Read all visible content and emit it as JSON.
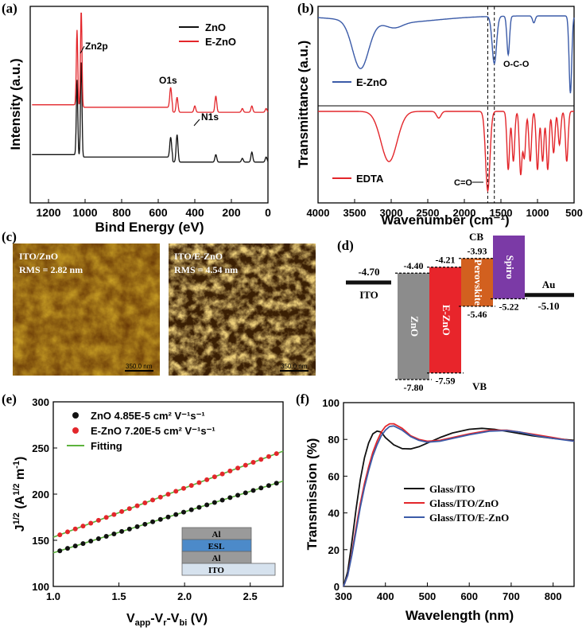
{
  "colors": {
    "black": "#111111",
    "red": "#e3262b",
    "blue": "#3b5ba8",
    "green": "#5db33d",
    "gray": "#8c8c8c",
    "ered": "#e8252b",
    "perov": "#d2601f",
    "spiro": "#7b3aa6"
  },
  "panels": {
    "a": {
      "label": "(a)",
      "chart_data": {
        "type": "line",
        "title": "",
        "xlabel": "Bind Energy (eV)",
        "ylabel": "Intensity (a.u.)",
        "xlim": [
          1300,
          0
        ],
        "xticks": [
          "1200",
          "1000",
          "800",
          "600",
          "400",
          "200",
          "0"
        ],
        "legend": [
          "ZnO",
          "E-ZnO"
        ],
        "annotations": [
          "Zn2p",
          "O1s",
          "N1s"
        ],
        "series": [
          {
            "name": "ZnO",
            "color": "black",
            "baseline": 0.22,
            "peaks": [
              [
                1044,
                0.62
              ],
              [
                1021,
                0.78
              ],
              [
                532,
                0.16
              ],
              [
                497,
                0.22
              ],
              [
                285,
                0.06
              ],
              [
                140,
                0.03
              ],
              [
                88,
                0.08
              ],
              [
                10,
                0.04
              ]
            ]
          },
          {
            "name": "E-ZnO",
            "color": "red",
            "baseline": 0.62,
            "peaks": [
              [
                1044,
                0.62
              ],
              [
                1021,
                0.78
              ],
              [
                532,
                0.16
              ],
              [
                497,
                0.12
              ],
              [
                400,
                0.05
              ],
              [
                285,
                0.13
              ],
              [
                140,
                0.03
              ],
              [
                88,
                0.05
              ],
              [
                10,
                0.03
              ]
            ]
          }
        ]
      }
    },
    "b": {
      "label": "(b)",
      "chart_data": {
        "type": "line",
        "title": "",
        "xlabel": "Wavenumber (cm⁻¹)",
        "ylabel": "Transmittance (a.u.)",
        "xlim": [
          4000,
          500
        ],
        "xticks": [
          "4000",
          "3500",
          "3000",
          "2500",
          "2000",
          "1500",
          "1000",
          "500"
        ],
        "dashed_lines_at": [
          1680,
          1590
        ],
        "annotations": [
          "O-C-O",
          "C=O"
        ],
        "series": [
          {
            "name": "E-ZnO",
            "color": "blue",
            "dips": [
              [
                3420,
                0.55
              ],
              [
                2960,
                0.06
              ],
              [
                1590,
                0.55
              ],
              [
                1400,
                0.45
              ],
              [
                1050,
                0.08
              ],
              [
                550,
                0.9
              ]
            ]
          },
          {
            "name": "EDTA",
            "color": "red",
            "dips": [
              [
                3030,
                0.6
              ],
              [
                2350,
                0.08
              ],
              [
                1680,
                0.95
              ],
              [
                1400,
                0.7
              ],
              [
                1330,
                0.6
              ],
              [
                1230,
                0.75
              ],
              [
                1180,
                0.55
              ],
              [
                1100,
                0.6
              ],
              [
                1000,
                0.7
              ],
              [
                930,
                0.6
              ],
              [
                860,
                0.7
              ],
              [
                780,
                0.5
              ],
              [
                700,
                0.4
              ],
              [
                600,
                0.6
              ]
            ]
          }
        ]
      }
    },
    "c": {
      "label": "(c)",
      "images": [
        {
          "title": "ITO/ZnO",
          "rms": "RMS = 2.82 nm",
          "scale": "350.0 nm"
        },
        {
          "title": "ITO/E-ZnO",
          "rms": "RMS = 4.54 nm",
          "scale": "350.0 nm"
        }
      ]
    },
    "d": {
      "label": "(d)",
      "chart_data": {
        "type": "energy-level-diagram",
        "cb_label": "CB",
        "vb_label": "VB",
        "materials": [
          {
            "name": "ITO",
            "wf": "-4.70",
            "wf_value": -4.7,
            "kind": "line"
          },
          {
            "name": "ZnO",
            "cb": "-4.40",
            "vb": "-7.80",
            "cb_value": -4.4,
            "vb_value": -7.8,
            "color": "gray"
          },
          {
            "name": "E-ZnO",
            "cb": "-4.21",
            "vb": "-7.59",
            "cb_value": -4.21,
            "vb_value": -7.59,
            "color": "ered"
          },
          {
            "name": "Perovskite",
            "cb": "-3.93",
            "vb": "-5.46",
            "cb_value": -3.93,
            "vb_value": -5.46,
            "color": "perov"
          },
          {
            "name": "Spiro",
            "cb": "",
            "vb": "-5.22",
            "cb_value": -3.2,
            "vb_value": -5.22,
            "color": "spiro"
          },
          {
            "name": "Au",
            "wf": "-5.10",
            "wf_value": -5.1,
            "kind": "line"
          }
        ]
      }
    },
    "e": {
      "label": "(e)",
      "chart_data": {
        "type": "scatter",
        "xlabel": "V_app-V_r-V_bi (V)",
        "ylabel": "J^1/2 (A^1/2 m^-1)",
        "xlim": [
          1.0,
          2.75
        ],
        "ylim": [
          100,
          300
        ],
        "xticks": [
          "1.0",
          "1.5",
          "2.0",
          "2.5"
        ],
        "yticks": [
          "100",
          "150",
          "200",
          "250",
          "300"
        ],
        "legend": [
          {
            "name": "ZnO",
            "text": "ZnO  4.85E-5 cm² V⁻¹s⁻¹",
            "color": "black"
          },
          {
            "name": "E-ZnO",
            "text": "E-ZnO  7.20E-5 cm² V⁻¹s⁻¹",
            "color": "red"
          },
          {
            "name": "Fitting",
            "text": "Fitting",
            "color": "green"
          }
        ],
        "series": [
          {
            "name": "ZnO",
            "x0": 1.05,
            "x1": 2.7,
            "n": 29,
            "slope": 44.4,
            "intercept": 92
          },
          {
            "name": "E-ZnO",
            "x0": 1.05,
            "x1": 2.7,
            "n": 29,
            "slope": 53.3,
            "intercept": 100
          }
        ],
        "inset_layers": [
          "Al",
          "ESL",
          "Al",
          "ITO"
        ]
      }
    },
    "f": {
      "label": "(f)",
      "chart_data": {
        "type": "line",
        "xlabel": "Wavelength (nm)",
        "ylabel": "Transmission (%)",
        "xlim": [
          300,
          850
        ],
        "ylim": [
          0,
          100
        ],
        "xticks": [
          "300",
          "400",
          "500",
          "600",
          "700",
          "800"
        ],
        "yticks": [
          "0",
          "20",
          "40",
          "60",
          "80",
          "100"
        ],
        "legend": [
          "Glass/ITO",
          "Glass/ITO/ZnO",
          "Glass/ITO/E-ZnO"
        ],
        "series": [
          {
            "name": "Glass/ITO",
            "color": "black",
            "points": [
              [
                300,
                0
              ],
              [
                310,
                8
              ],
              [
                320,
                24
              ],
              [
                330,
                42
              ],
              [
                340,
                58
              ],
              [
                350,
                70
              ],
              [
                360,
                78
              ],
              [
                370,
                83
              ],
              [
                380,
                84.5
              ],
              [
                390,
                84
              ],
              [
                400,
                81
              ],
              [
                420,
                77
              ],
              [
                440,
                75
              ],
              [
                460,
                74.8
              ],
              [
                480,
                76
              ],
              [
                500,
                78
              ],
              [
                530,
                81
              ],
              [
                560,
                83.5
              ],
              [
                600,
                85.5
              ],
              [
                630,
                86
              ],
              [
                660,
                85.5
              ],
              [
                700,
                84
              ],
              [
                750,
                82
              ],
              [
                800,
                80.5
              ],
              [
                850,
                79.5
              ]
            ]
          },
          {
            "name": "Glass/ITO/ZnO",
            "color": "red",
            "points": [
              [
                300,
                0
              ],
              [
                310,
                6
              ],
              [
                320,
                18
              ],
              [
                330,
                32
              ],
              [
                340,
                45
              ],
              [
                350,
                56
              ],
              [
                360,
                65
              ],
              [
                370,
                73
              ],
              [
                380,
                79
              ],
              [
                390,
                84
              ],
              [
                400,
                87
              ],
              [
                410,
                88.5
              ],
              [
                420,
                88.5
              ],
              [
                440,
                86
              ],
              [
                460,
                82
              ],
              [
                480,
                80
              ],
              [
                500,
                79
              ],
              [
                530,
                79.5
              ],
              [
                560,
                81
              ],
              [
                600,
                83
              ],
              [
                650,
                85
              ],
              [
                690,
                85
              ],
              [
                720,
                84
              ],
              [
                760,
                82.5
              ],
              [
                800,
                81
              ],
              [
                850,
                79
              ]
            ]
          },
          {
            "name": "Glass/ITO/E-ZnO",
            "color": "blue",
            "points": [
              [
                300,
                0
              ],
              [
                310,
                6
              ],
              [
                320,
                17
              ],
              [
                330,
                30
              ],
              [
                340,
                43
              ],
              [
                350,
                54
              ],
              [
                360,
                63
              ],
              [
                370,
                71
              ],
              [
                380,
                77
              ],
              [
                390,
                82
              ],
              [
                400,
                85
              ],
              [
                410,
                87
              ],
              [
                420,
                87.3
              ],
              [
                440,
                85
              ],
              [
                460,
                81.5
              ],
              [
                480,
                79.5
              ],
              [
                500,
                78.5
              ],
              [
                530,
                79
              ],
              [
                560,
                80.5
              ],
              [
                600,
                82.5
              ],
              [
                650,
                84.5
              ],
              [
                690,
                84.8
              ],
              [
                720,
                84
              ],
              [
                760,
                82
              ],
              [
                800,
                80.5
              ],
              [
                850,
                79
              ]
            ]
          }
        ]
      }
    }
  }
}
